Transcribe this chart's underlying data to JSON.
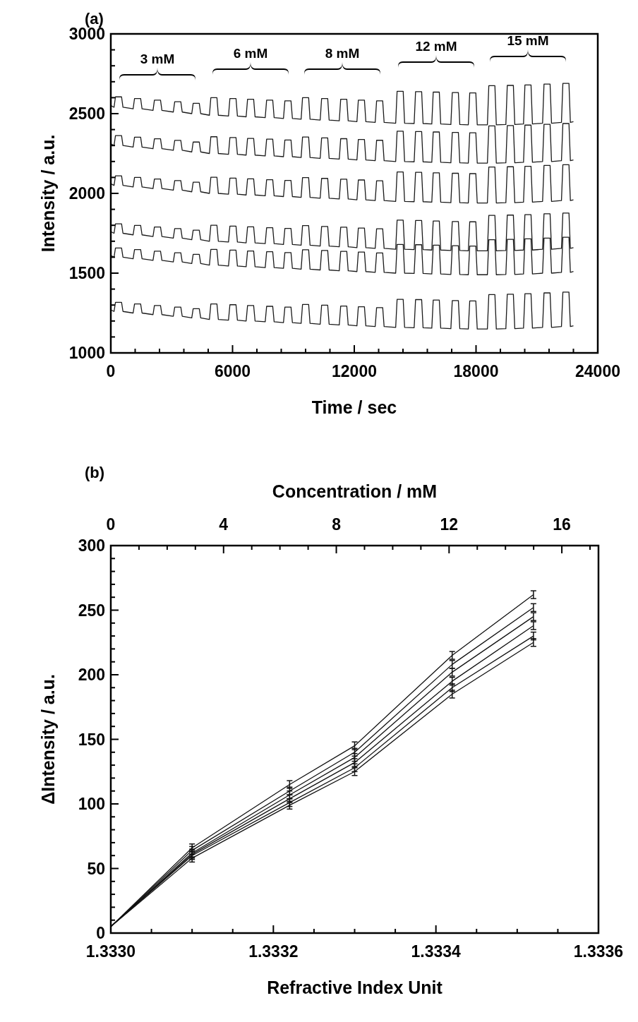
{
  "chart_data": [
    {
      "type": "line",
      "annotations": [
        "(a)",
        "3 mM",
        "6 mM",
        "8 mM",
        "12 mM",
        "15 mM"
      ],
      "xlabel": "Time / sec",
      "ylabel": "Intensity / a.u.",
      "xlim": [
        0,
        24000
      ],
      "ylim": [
        1000,
        3000
      ],
      "xticks": [
        0,
        {
          "value": 1200,
          "label": null
        },
        {
          "value": 2400,
          "label": null
        },
        {
          "value": 3600,
          "label": null
        },
        {
          "value": 4800,
          "label": null
        },
        6000,
        {
          "value": 7200,
          "label": null
        },
        {
          "value": 8400,
          "label": null
        },
        {
          "value": 9600,
          "label": null
        },
        {
          "value": 10800,
          "label": null
        },
        12000,
        {
          "value": 13200,
          "label": null
        },
        {
          "value": 14400,
          "label": null
        },
        {
          "value": 15600,
          "label": null
        },
        {
          "value": 16800,
          "label": null
        },
        18000,
        {
          "value": 19200,
          "label": null
        },
        {
          "value": 20400,
          "label": null
        },
        {
          "value": 21600,
          "label": null
        },
        {
          "value": 22800,
          "label": null
        },
        24000
      ],
      "yticks": [
        1000,
        {
          "value": 1100,
          "label": null
        },
        {
          "value": 1200,
          "label": null
        },
        {
          "value": 1300,
          "label": null
        },
        {
          "value": 1400,
          "label": null
        },
        1500,
        {
          "value": 1600,
          "label": null
        },
        {
          "value": 1700,
          "label": null
        },
        {
          "value": 1800,
          "label": null
        },
        {
          "value": 1900,
          "label": null
        },
        2000,
        {
          "value": 2100,
          "label": null
        },
        {
          "value": 2200,
          "label": null
        },
        {
          "value": 2300,
          "label": null
        },
        {
          "value": 2400,
          "label": null
        },
        2500,
        {
          "value": 2600,
          "label": null
        },
        {
          "value": 2700,
          "label": null
        },
        {
          "value": 2800,
          "label": null
        },
        {
          "value": 2900,
          "label": null
        },
        3000
      ],
      "marker": "none",
      "line_style": "solid",
      "x": [
        0,
        160,
        230,
        530,
        600,
        1100,
        1170,
        1470,
        1540,
        2080,
        2150,
        2450,
        2520,
        3080,
        3150,
        3450,
        3520,
        3990,
        4060,
        4360,
        4430,
        4860,
        4930,
        5230,
        5300,
        5800,
        5870,
        6170,
        6240,
        6670,
        6740,
        7040,
        7110,
        7610,
        7680,
        7980,
        8050,
        8510,
        8580,
        8880,
        8950,
        9380,
        9450,
        9750,
        9820,
        10320,
        10390,
        10690,
        10760,
        11260,
        11330,
        11630,
        11700,
        12130,
        12200,
        12500,
        12570,
        13030,
        13100,
        13400,
        13470,
        14040,
        14110,
        14410,
        14480,
        14950,
        15020,
        15320,
        15390,
        15820,
        15890,
        16190,
        16260,
        16760,
        16830,
        17130,
        17200,
        17620,
        17690,
        17990,
        18060,
        18560,
        18630,
        18930,
        19000,
        19470,
        19540,
        19840,
        19910,
        20340,
        20410,
        20710,
        20780,
        21280,
        21350,
        21650,
        21720,
        22210,
        22280,
        22580,
        22650,
        22800
      ],
      "series": [
        {
          "color": "#1a1a1a",
          "values": [
            2550,
            2540,
            2605,
            2605,
            2540,
            2530,
            2595,
            2595,
            2530,
            2520,
            2585,
            2585,
            2520,
            2510,
            2575,
            2575,
            2510,
            2500,
            2565,
            2565,
            2500,
            2490,
            2600,
            2600,
            2490,
            2485,
            2595,
            2595,
            2485,
            2480,
            2590,
            2590,
            2480,
            2475,
            2585,
            2585,
            2475,
            2470,
            2580,
            2580,
            2470,
            2465,
            2600,
            2600,
            2465,
            2460,
            2595,
            2595,
            2460,
            2455,
            2590,
            2590,
            2455,
            2450,
            2585,
            2585,
            2450,
            2445,
            2580,
            2580,
            2445,
            2440,
            2640,
            2640,
            2440,
            2438,
            2638,
            2638,
            2438,
            2435,
            2635,
            2635,
            2435,
            2432,
            2632,
            2632,
            2432,
            2430,
            2630,
            2630,
            2430,
            2430,
            2675,
            2675,
            2430,
            2432,
            2677,
            2677,
            2432,
            2435,
            2680,
            2680,
            2435,
            2440,
            2685,
            2685,
            2440,
            2445,
            2690,
            2690,
            2445,
            2450
          ]
        },
        {
          "color": "#1a1a1a",
          "values": [
            2310,
            2300,
            2362,
            2362,
            2300,
            2290,
            2352,
            2352,
            2290,
            2280,
            2342,
            2342,
            2280,
            2270,
            2332,
            2332,
            2270,
            2260,
            2322,
            2322,
            2260,
            2250,
            2355,
            2355,
            2250,
            2245,
            2350,
            2350,
            2245,
            2240,
            2345,
            2345,
            2240,
            2235,
            2340,
            2340,
            2235,
            2230,
            2335,
            2335,
            2230,
            2225,
            2353,
            2353,
            2225,
            2220,
            2348,
            2348,
            2220,
            2215,
            2343,
            2343,
            2215,
            2210,
            2338,
            2338,
            2210,
            2205,
            2333,
            2333,
            2205,
            2200,
            2390,
            2390,
            2200,
            2198,
            2388,
            2388,
            2198,
            2195,
            2385,
            2385,
            2195,
            2192,
            2382,
            2382,
            2192,
            2190,
            2380,
            2380,
            2190,
            2190,
            2423,
            2423,
            2190,
            2192,
            2425,
            2425,
            2192,
            2195,
            2428,
            2428,
            2195,
            2200,
            2433,
            2433,
            2200,
            2205,
            2438,
            2438,
            2205,
            2210
          ]
        },
        {
          "color": "#1a1a1a",
          "values": [
            2060,
            2050,
            2110,
            2110,
            2050,
            2040,
            2100,
            2100,
            2040,
            2030,
            2090,
            2090,
            2030,
            2020,
            2080,
            2080,
            2020,
            2010,
            2070,
            2070,
            2010,
            2000,
            2101,
            2101,
            2000,
            1995,
            2096,
            2096,
            1995,
            1990,
            2091,
            2091,
            1990,
            1985,
            2086,
            2086,
            1985,
            1980,
            2081,
            2081,
            1980,
            1975,
            2099,
            2099,
            1975,
            1970,
            2094,
            2094,
            1970,
            1965,
            2089,
            2089,
            1965,
            1960,
            2084,
            2084,
            1960,
            1955,
            2079,
            2079,
            1955,
            1950,
            2134,
            2134,
            1950,
            1948,
            2132,
            2132,
            1948,
            1945,
            2129,
            2129,
            1945,
            1942,
            2126,
            2126,
            1942,
            1940,
            2124,
            2124,
            1940,
            1940,
            2165,
            2165,
            1940,
            1942,
            2167,
            2167,
            1942,
            1945,
            2170,
            2170,
            1945,
            1950,
            2175,
            2175,
            1950,
            1955,
            2180,
            2180,
            1955,
            1960
          ]
        },
        {
          "color": "#1a1a1a",
          "values": [
            1760,
            1750,
            1809,
            1809,
            1750,
            1740,
            1799,
            1799,
            1740,
            1730,
            1789,
            1789,
            1730,
            1720,
            1779,
            1779,
            1720,
            1710,
            1769,
            1769,
            1710,
            1700,
            1800,
            1800,
            1700,
            1695,
            1795,
            1795,
            1695,
            1690,
            1790,
            1790,
            1690,
            1685,
            1785,
            1785,
            1685,
            1680,
            1780,
            1780,
            1680,
            1675,
            1798,
            1798,
            1675,
            1670,
            1793,
            1793,
            1670,
            1665,
            1788,
            1788,
            1665,
            1660,
            1783,
            1783,
            1660,
            1655,
            1778,
            1778,
            1655,
            1650,
            1832,
            1832,
            1650,
            1648,
            1830,
            1830,
            1648,
            1645,
            1827,
            1827,
            1645,
            1642,
            1824,
            1824,
            1642,
            1640,
            1822,
            1822,
            1640,
            1640,
            1862,
            1862,
            1640,
            1642,
            1864,
            1864,
            1642,
            1645,
            1867,
            1867,
            1645,
            1650,
            1872,
            1872,
            1650,
            1655,
            1877,
            1877,
            1655,
            1660
          ]
        },
        {
          "color": "#1a1a1a",
          "values": [
            1610,
            1600,
            1658,
            1658,
            1600,
            1590,
            1648,
            1648,
            1590,
            1580,
            1638,
            1638,
            1580,
            1570,
            1628,
            1628,
            1570,
            1560,
            1618,
            1618,
            1560,
            1550,
            1649,
            1649,
            1550,
            1545,
            1644,
            1644,
            1545,
            1540,
            1639,
            1639,
            1540,
            1535,
            1634,
            1634,
            1535,
            1530,
            1629,
            1629,
            1530,
            1525,
            1647,
            1647,
            1525,
            1520,
            1642,
            1642,
            1520,
            1515,
            1637,
            1637,
            1515,
            1510,
            1632,
            1632,
            1510,
            1505,
            1627,
            1627,
            1505,
            1500,
            1680,
            1680,
            1500,
            1498,
            1678,
            1678,
            1498,
            1495,
            1675,
            1675,
            1495,
            1492,
            1672,
            1672,
            1492,
            1490,
            1670,
            1670,
            1490,
            1490,
            1710,
            1710,
            1490,
            1492,
            1712,
            1712,
            1492,
            1495,
            1715,
            1715,
            1495,
            1500,
            1720,
            1720,
            1500,
            1505,
            1725,
            1725,
            1505,
            1510
          ]
        },
        {
          "color": "#1a1a1a",
          "values": [
            1270,
            1260,
            1317,
            1317,
            1260,
            1250,
            1307,
            1307,
            1250,
            1240,
            1297,
            1297,
            1240,
            1230,
            1287,
            1287,
            1230,
            1220,
            1277,
            1277,
            1220,
            1210,
            1307,
            1307,
            1210,
            1205,
            1302,
            1302,
            1205,
            1200,
            1297,
            1297,
            1200,
            1195,
            1292,
            1292,
            1195,
            1190,
            1287,
            1287,
            1190,
            1185,
            1304,
            1304,
            1185,
            1180,
            1299,
            1299,
            1180,
            1175,
            1294,
            1294,
            1175,
            1170,
            1289,
            1289,
            1170,
            1165,
            1284,
            1284,
            1165,
            1160,
            1336,
            1336,
            1160,
            1158,
            1334,
            1334,
            1158,
            1155,
            1331,
            1331,
            1155,
            1152,
            1328,
            1328,
            1152,
            1150,
            1326,
            1326,
            1150,
            1150,
            1366,
            1366,
            1150,
            1152,
            1368,
            1368,
            1152,
            1155,
            1371,
            1371,
            1155,
            1160,
            1376,
            1376,
            1160,
            1165,
            1381,
            1381,
            1165,
            1170
          ]
        }
      ]
    },
    {
      "type": "line",
      "annotations": [
        "(b)"
      ],
      "xlabel": "Refractive Index Unit",
      "ylabel": "ΔIntensity / a.u.",
      "x2label": "Concentration / mM",
      "xlim": [
        1.333,
        1.3336
      ],
      "ylim": [
        0,
        300
      ],
      "x2lim": [
        0,
        17.3
      ],
      "xticks": [
        {
          "value": 1.333,
          "label": "1.3330"
        },
        {
          "value": 1.33305,
          "label": null
        },
        {
          "value": 1.3331,
          "label": null
        },
        {
          "value": 1.33315,
          "label": null
        },
        1.3332,
        {
          "value": 1.33325,
          "label": null
        },
        {
          "value": 1.3333,
          "label": null
        },
        {
          "value": 1.33335,
          "label": null
        },
        1.3334,
        {
          "value": 1.33345,
          "label": null
        },
        {
          "value": 1.3335,
          "label": null
        },
        {
          "value": 1.33355,
          "label": null
        },
        1.3336
      ],
      "x2ticks": [
        0,
        {
          "value": 1,
          "label": null
        },
        {
          "value": 2,
          "label": null
        },
        {
          "value": 3,
          "label": null
        },
        4,
        {
          "value": 5,
          "label": null
        },
        {
          "value": 6,
          "label": null
        },
        {
          "value": 7,
          "label": null
        },
        8,
        {
          "value": 9,
          "label": null
        },
        {
          "value": 10,
          "label": null
        },
        {
          "value": 11,
          "label": null
        },
        12,
        {
          "value": 13,
          "label": null
        },
        {
          "value": 14,
          "label": null
        },
        {
          "value": 15,
          "label": null
        },
        16,
        {
          "value": 17,
          "label": null
        }
      ],
      "yticks": [
        0,
        {
          "value": 10,
          "label": null
        },
        {
          "value": 20,
          "label": null
        },
        {
          "value": 30,
          "label": null
        },
        {
          "value": 40,
          "label": null
        },
        50,
        {
          "value": 60,
          "label": null
        },
        {
          "value": 70,
          "label": null
        },
        {
          "value": 80,
          "label": null
        },
        {
          "value": 90,
          "label": null
        },
        100,
        {
          "value": 110,
          "label": null
        },
        {
          "value": 120,
          "label": null
        },
        {
          "value": 130,
          "label": null
        },
        {
          "value": 140,
          "label": null
        },
        150,
        {
          "value": 160,
          "label": null
        },
        {
          "value": 170,
          "label": null
        },
        {
          "value": 180,
          "label": null
        },
        {
          "value": 190,
          "label": null
        },
        200,
        {
          "value": 210,
          "label": null
        },
        {
          "value": 220,
          "label": null
        },
        {
          "value": 230,
          "label": null
        },
        {
          "value": 240,
          "label": null
        },
        250,
        {
          "value": 260,
          "label": null
        },
        {
          "value": 270,
          "label": null
        },
        {
          "value": 280,
          "label": null
        },
        {
          "value": 290,
          "label": null
        },
        300
      ],
      "marker": "none",
      "line_style": "solid",
      "x": [
        1.333,
        1.3331,
        1.33322,
        1.3333,
        1.33342,
        1.33352
      ],
      "series": [
        {
          "color": "#111111",
          "values": [
            5,
            66,
            115,
            145,
            215,
            262
          ],
          "errors": [
            null,
            3,
            3,
            3,
            3,
            3
          ]
        },
        {
          "color": "#111111",
          "values": [
            5,
            64,
            110,
            140,
            208,
            252
          ],
          "errors": [
            null,
            3,
            3,
            3,
            3,
            3
          ]
        },
        {
          "color": "#111111",
          "values": [
            5,
            62,
            107,
            136,
            202,
            245
          ],
          "errors": [
            null,
            3,
            3,
            3,
            3,
            3
          ]
        },
        {
          "color": "#111111",
          "values": [
            5,
            61,
            104,
            132,
            195,
            238
          ],
          "errors": [
            null,
            3,
            3,
            3,
            3,
            3
          ]
        },
        {
          "color": "#111111",
          "values": [
            5,
            60,
            101,
            128,
            190,
            230
          ],
          "errors": [
            null,
            3,
            3,
            3,
            3,
            3
          ]
        },
        {
          "color": "#111111",
          "values": [
            5,
            58,
            99,
            125,
            185,
            225
          ],
          "errors": [
            null,
            3,
            3,
            3,
            3,
            3
          ]
        }
      ]
    }
  ]
}
